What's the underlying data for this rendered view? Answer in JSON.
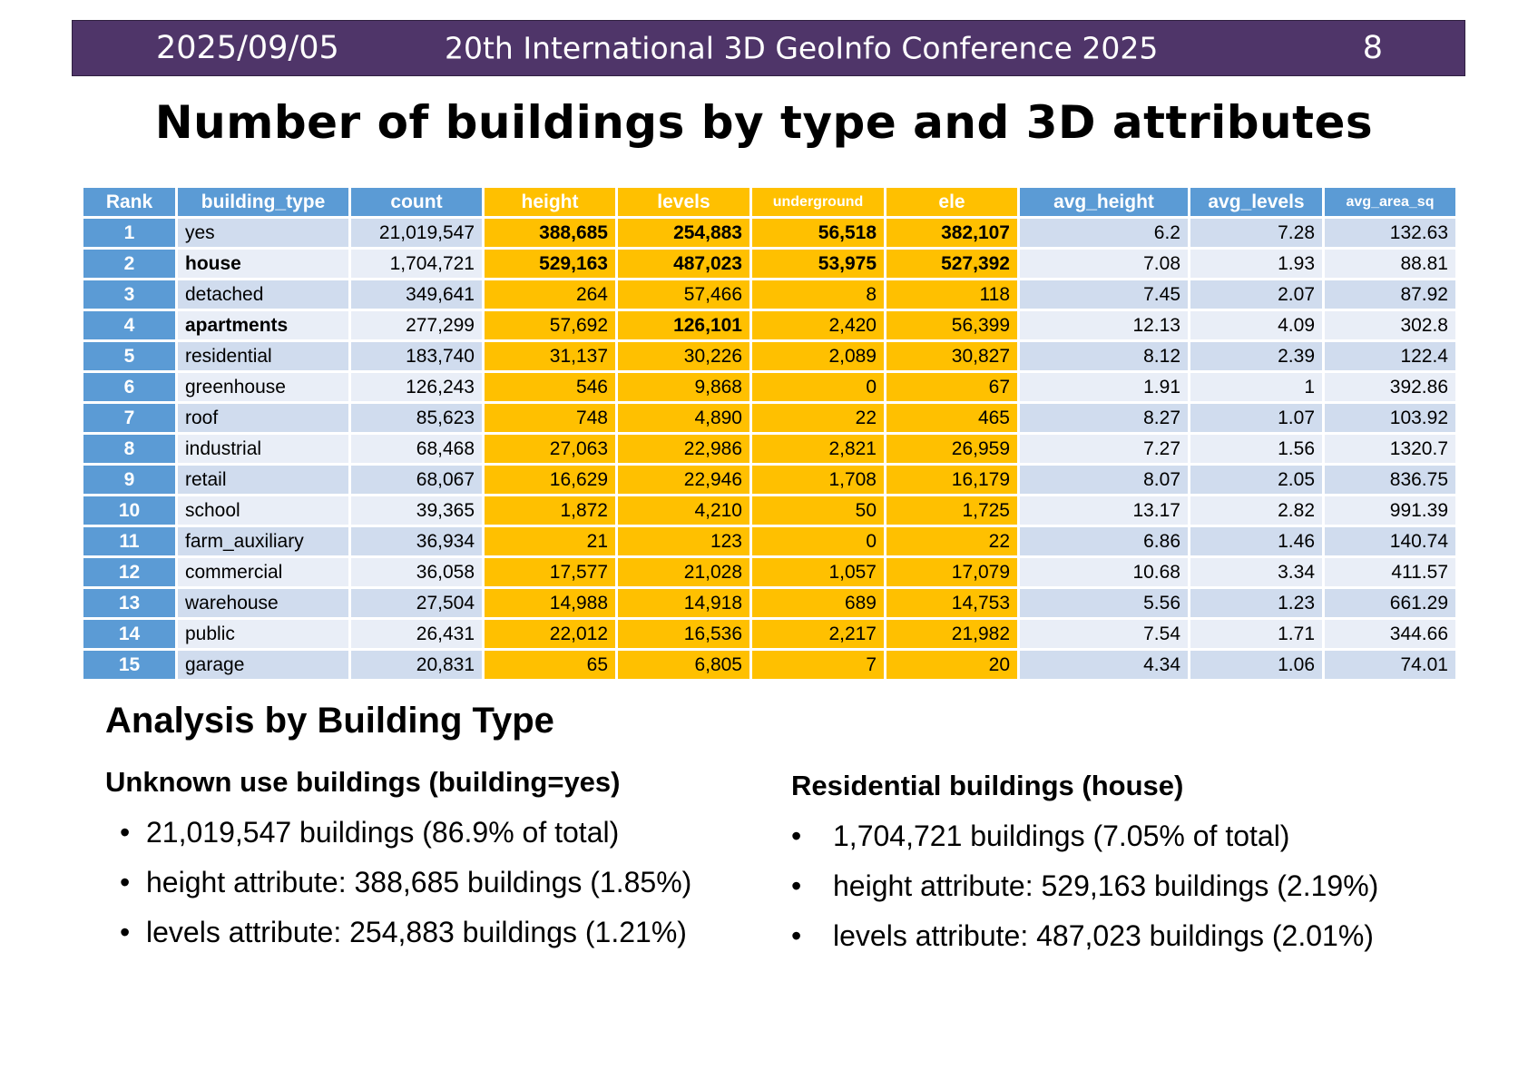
{
  "header": {
    "date": "2025/09/05",
    "conference": "20th International 3D GeoInfo Conference 2025",
    "page_number": "8",
    "background_color": "#4f3569"
  },
  "title": "Number of buildings by type and 3D attributes",
  "table": {
    "columns": [
      "Rank",
      "building_type",
      "count",
      "height",
      "levels",
      "underground",
      "ele",
      "avg_height",
      "avg_levels",
      "avg_area_sq"
    ],
    "header_color": "#5b9bd5",
    "attribute_color": "#ffc000",
    "rows": [
      {
        "rank": "1",
        "building_type": "yes",
        "count": "21,019,547",
        "height": "388,685",
        "levels": "254,883",
        "underground": "56,518",
        "ele": "382,107",
        "avg_height": "6.2",
        "avg_levels": "7.28",
        "avg_area_sq": "132.63"
      },
      {
        "rank": "2",
        "building_type": "house",
        "count": "1,704,721",
        "height": "529,163",
        "levels": "487,023",
        "underground": "53,975",
        "ele": "527,392",
        "avg_height": "7.08",
        "avg_levels": "1.93",
        "avg_area_sq": "88.81"
      },
      {
        "rank": "3",
        "building_type": "detached",
        "count": "349,641",
        "height": "264",
        "levels": "57,466",
        "underground": "8",
        "ele": "118",
        "avg_height": "7.45",
        "avg_levels": "2.07",
        "avg_area_sq": "87.92"
      },
      {
        "rank": "4",
        "building_type": "apartments",
        "count": "277,299",
        "height": "57,692",
        "levels": "126,101",
        "underground": "2,420",
        "ele": "56,399",
        "avg_height": "12.13",
        "avg_levels": "4.09",
        "avg_area_sq": "302.8"
      },
      {
        "rank": "5",
        "building_type": "residential",
        "count": "183,740",
        "height": "31,137",
        "levels": "30,226",
        "underground": "2,089",
        "ele": "30,827",
        "avg_height": "8.12",
        "avg_levels": "2.39",
        "avg_area_sq": "122.4"
      },
      {
        "rank": "6",
        "building_type": "greenhouse",
        "count": "126,243",
        "height": "546",
        "levels": "9,868",
        "underground": "0",
        "ele": "67",
        "avg_height": "1.91",
        "avg_levels": "1",
        "avg_area_sq": "392.86"
      },
      {
        "rank": "7",
        "building_type": "roof",
        "count": "85,623",
        "height": "748",
        "levels": "4,890",
        "underground": "22",
        "ele": "465",
        "avg_height": "8.27",
        "avg_levels": "1.07",
        "avg_area_sq": "103.92"
      },
      {
        "rank": "8",
        "building_type": "industrial",
        "count": "68,468",
        "height": "27,063",
        "levels": "22,986",
        "underground": "2,821",
        "ele": "26,959",
        "avg_height": "7.27",
        "avg_levels": "1.56",
        "avg_area_sq": "1320.7"
      },
      {
        "rank": "9",
        "building_type": "retail",
        "count": "68,067",
        "height": "16,629",
        "levels": "22,946",
        "underground": "1,708",
        "ele": "16,179",
        "avg_height": "8.07",
        "avg_levels": "2.05",
        "avg_area_sq": "836.75"
      },
      {
        "rank": "10",
        "building_type": "school",
        "count": "39,365",
        "height": "1,872",
        "levels": "4,210",
        "underground": "50",
        "ele": "1,725",
        "avg_height": "13.17",
        "avg_levels": "2.82",
        "avg_area_sq": "991.39"
      },
      {
        "rank": "11",
        "building_type": "farm_auxiliary",
        "count": "36,934",
        "height": "21",
        "levels": "123",
        "underground": "0",
        "ele": "22",
        "avg_height": "6.86",
        "avg_levels": "1.46",
        "avg_area_sq": "140.74"
      },
      {
        "rank": "12",
        "building_type": "commercial",
        "count": "36,058",
        "height": "17,577",
        "levels": "21,028",
        "underground": "1,057",
        "ele": "17,079",
        "avg_height": "10.68",
        "avg_levels": "3.34",
        "avg_area_sq": "411.57"
      },
      {
        "rank": "13",
        "building_type": "warehouse",
        "count": "27,504",
        "height": "14,988",
        "levels": "14,918",
        "underground": "689",
        "ele": "14,753",
        "avg_height": "5.56",
        "avg_levels": "1.23",
        "avg_area_sq": "661.29"
      },
      {
        "rank": "14",
        "building_type": "public",
        "count": "26,431",
        "height": "22,012",
        "levels": "16,536",
        "underground": "2,217",
        "ele": "21,982",
        "avg_height": "7.54",
        "avg_levels": "1.71",
        "avg_area_sq": "344.66"
      },
      {
        "rank": "15",
        "building_type": "garage",
        "count": "20,831",
        "height": "65",
        "levels": "6,805",
        "underground": "7",
        "ele": "20",
        "avg_height": "4.34",
        "avg_levels": "1.06",
        "avg_area_sq": "74.01"
      }
    ]
  },
  "analysis": {
    "title": "Analysis by Building Type",
    "left": {
      "heading": "Unknown use buildings (building=yes)",
      "bullets": [
        "21,019,547 buildings (86.9% of total)",
        "height attribute: 388,685 buildings (1.85%)",
        "levels attribute: 254,883 buildings (1.21%)"
      ]
    },
    "right": {
      "heading": "Residential buildings (house)",
      "bullets": [
        "1,704,721 buildings (7.05% of total)",
        "height attribute: 529,163 buildings (2.19%)",
        "levels attribute: 487,023 buildings (2.01%)"
      ]
    }
  }
}
